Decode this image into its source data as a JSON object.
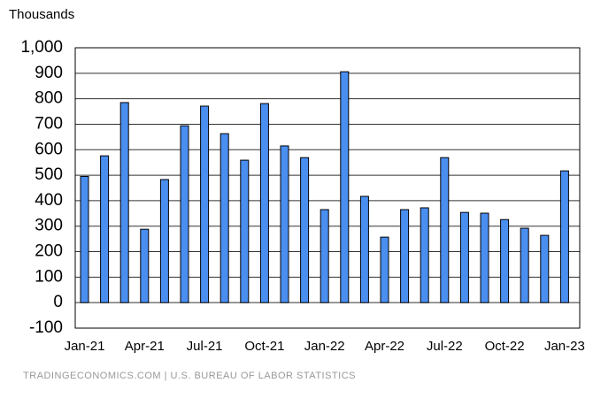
{
  "chart_data": {
    "type": "bar",
    "y_label": "Thousands",
    "source": "TRADINGECONOMICS.COM | U.S. BUREAU OF LABOR STATISTICS",
    "categories": [
      "Jan-21",
      null,
      null,
      "Apr-21",
      null,
      null,
      "Jul-21",
      null,
      null,
      "Oct-21",
      null,
      null,
      "Jan-22",
      null,
      null,
      "Apr-22",
      null,
      null,
      "Jul-22",
      null,
      null,
      "Oct-22",
      null,
      null,
      "Jan-23"
    ],
    "values": [
      495,
      576,
      785,
      288,
      483,
      694,
      771,
      663,
      559,
      781,
      615,
      569,
      365,
      906,
      417,
      257,
      365,
      372,
      569,
      354,
      351,
      326,
      292,
      264,
      517
    ],
    "color": "#4a8ef0",
    "ylim": [
      -100,
      1000
    ],
    "yticks": [
      -100,
      0,
      100,
      200,
      300,
      400,
      500,
      600,
      700,
      800,
      900,
      {
        "value": 1000,
        "label": "1,000"
      }
    ],
    "grid": true
  }
}
